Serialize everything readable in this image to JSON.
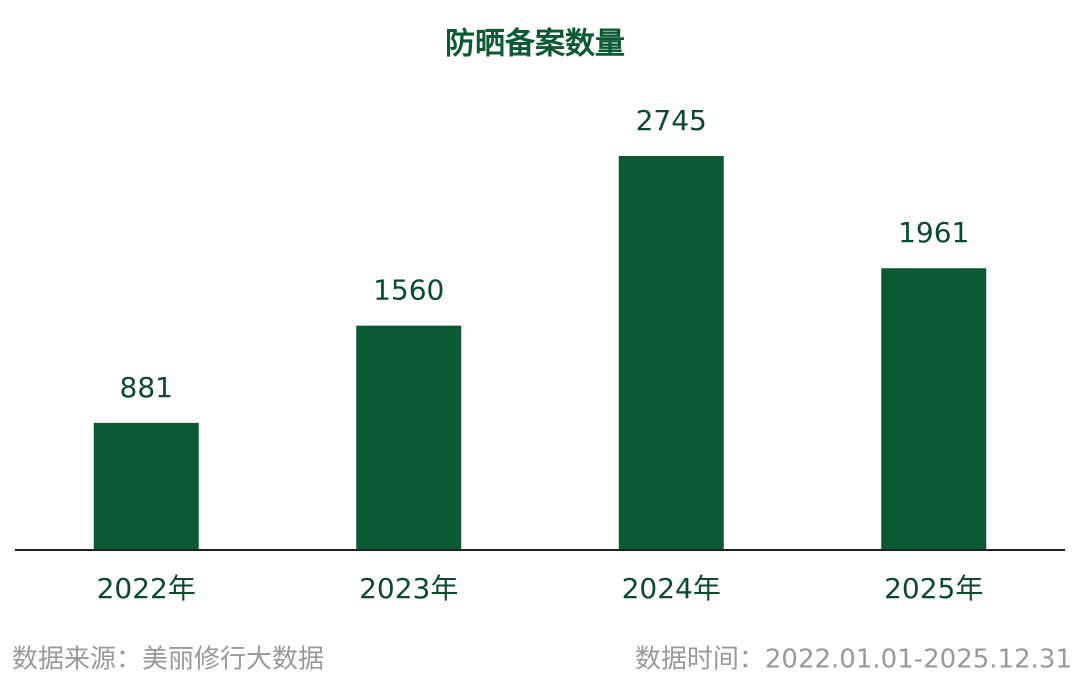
{
  "chart_data": {
    "type": "bar",
    "title": "防晒备案数量",
    "categories": [
      "2022年",
      "2023年",
      "2024年",
      "2025年"
    ],
    "values": [
      881,
      1560,
      2745,
      1961
    ],
    "color": "#0b5a32",
    "source": "数据来源：美丽修行大数据",
    "date_range": "数据时间：2022.01.01-2025.12.31"
  }
}
